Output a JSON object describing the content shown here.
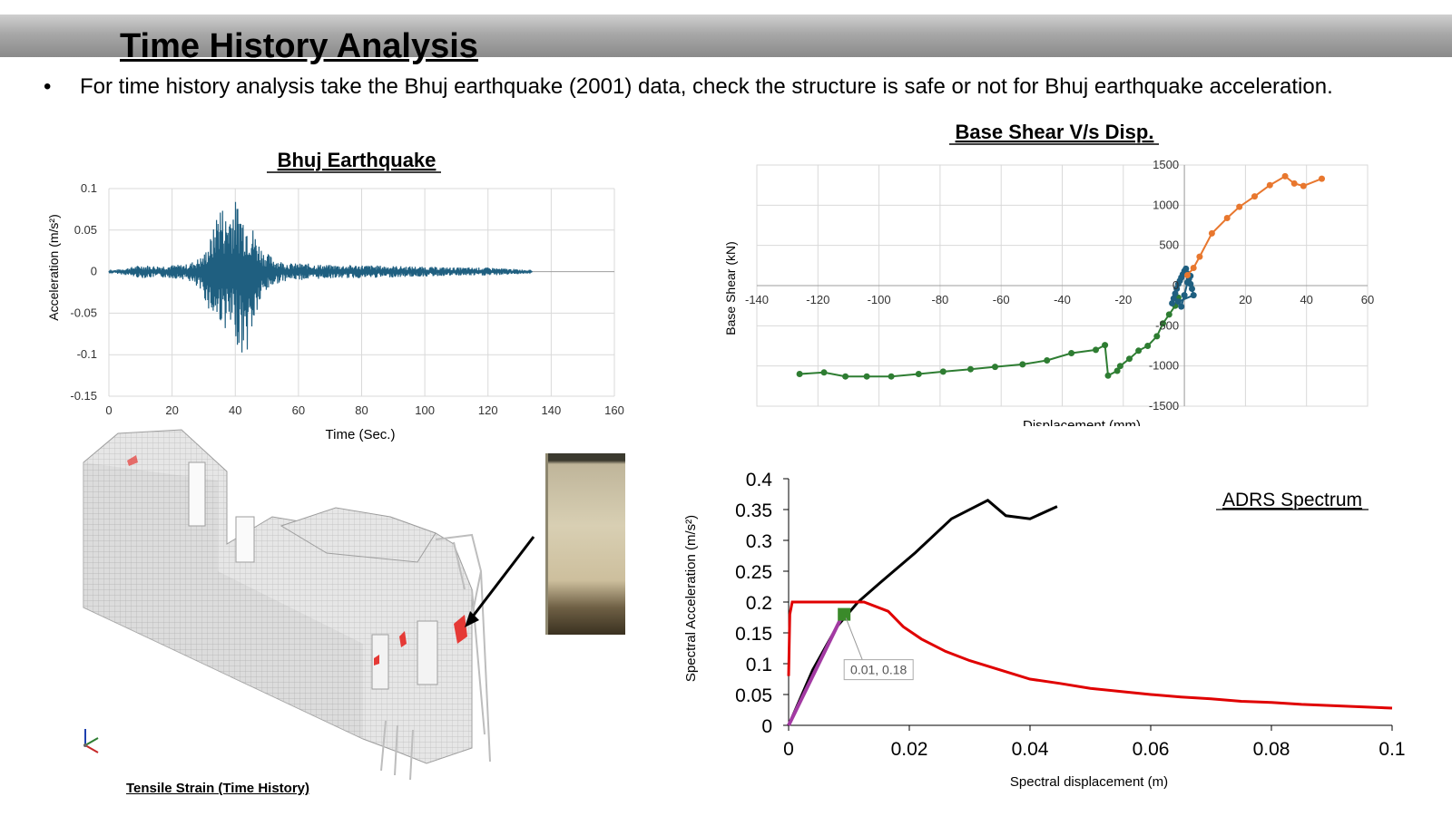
{
  "slide": {
    "title": "Time History Analysis",
    "bullet_symbol": "•",
    "bullet_text": "For time history analysis take the Bhuj earthquake (2001) data, check the structure is safe or not for Bhuj earthquake acceleration.",
    "model_caption": "Tensile Strain (Time History)"
  },
  "colors": {
    "accel_series": "#1f5f80",
    "hysteresis_green": "#2e7d32",
    "hysteresis_blue": "#1f5f80",
    "hysteresis_orange": "#e8772e",
    "capacity_curve": "#000000",
    "demand_spectrum": "#e00000",
    "elastic_line": "#a33aa3",
    "performance_point": "#3a8a2a",
    "strain_highlight": "#e00000"
  },
  "chart_data": [
    {
      "type": "line",
      "title": "Bhuj Earthquake",
      "xlabel": "Time (Sec.)",
      "ylabel": "Acceleration (m/s²)",
      "xlim": [
        0,
        160
      ],
      "ylim": [
        -0.15,
        0.1
      ],
      "x_ticks": [
        "0",
        "20",
        "40",
        "60",
        "80",
        "100",
        "120",
        "140",
        "160"
      ],
      "y_ticks": [
        "0.1",
        "0.05",
        "0",
        "-0.05",
        "-0.1",
        "-0.15"
      ],
      "grid": true,
      "series": [
        {
          "x": [
            0,
            5,
            10,
            15,
            20,
            25,
            30,
            33,
            35,
            37,
            39,
            41,
            43,
            45,
            47,
            49,
            51,
            53,
            55,
            58,
            62,
            70,
            80,
            90,
            100,
            110,
            120,
            134
          ],
          "envelope_max": [
            0.001,
            0.004,
            0.008,
            0.007,
            0.008,
            0.009,
            0.02,
            0.05,
            0.09,
            0.07,
            0.088,
            0.085,
            0.07,
            0.06,
            0.04,
            0.025,
            0.02,
            0.015,
            0.012,
            0.01,
            0.01,
            0.008,
            0.008,
            0.007,
            0.006,
            0.005,
            0.005,
            0.002
          ],
          "envelope_min": [
            -0.001,
            -0.004,
            -0.008,
            -0.007,
            -0.008,
            -0.01,
            -0.03,
            -0.06,
            -0.06,
            -0.07,
            -0.08,
            -0.09,
            -0.11,
            -0.08,
            -0.05,
            -0.03,
            -0.02,
            -0.015,
            -0.012,
            -0.01,
            -0.01,
            -0.008,
            -0.008,
            -0.007,
            -0.006,
            -0.005,
            -0.005,
            -0.002
          ]
        }
      ]
    },
    {
      "type": "scatter",
      "title": "Base Shear V/s Disp.",
      "xlabel": "Displacement (mm)",
      "ylabel": "Base Shear (kN)",
      "xlim": [
        -140,
        60
      ],
      "ylim": [
        -1500,
        1500
      ],
      "x_ticks": [
        "-140",
        "-120",
        "-100",
        "-80",
        "-60",
        "-40",
        "-20",
        "0",
        "20",
        "40",
        "60"
      ],
      "y_ticks": [
        "1500",
        "1000",
        "500",
        "0",
        "-500",
        "-1000",
        "-1500"
      ],
      "grid": true,
      "series": [
        {
          "color_key": "hysteresis_green",
          "x": [
            -126,
            -118,
            -111,
            -104,
            -96,
            -87,
            -79,
            -70,
            -62,
            -53,
            -45,
            -37,
            -29,
            -26,
            -25,
            -22,
            -21,
            -18,
            -15,
            -12,
            -9,
            -7,
            -5,
            -3,
            -2
          ],
          "y": [
            -1100,
            -1080,
            -1130,
            -1130,
            -1130,
            -1100,
            -1070,
            -1040,
            -1010,
            -980,
            -930,
            -840,
            -800,
            -740,
            -1120,
            -1060,
            -1000,
            -910,
            -810,
            -750,
            -630,
            -470,
            -360,
            -250,
            -150
          ]
        },
        {
          "color_key": "hysteresis_blue",
          "x": [
            -4,
            -3.5,
            -3,
            -2.5,
            -2,
            -1.5,
            -1,
            -0.5,
            0,
            0.5,
            1,
            1.5,
            2,
            2.5,
            3,
            -2,
            -1,
            0,
            1,
            2
          ],
          "y": [
            -220,
            -160,
            -100,
            -40,
            20,
            60,
            100,
            140,
            180,
            210,
            150,
            80,
            20,
            -40,
            -120,
            -200,
            -260,
            -120,
            40,
            120
          ]
        },
        {
          "color_key": "hysteresis_orange",
          "x": [
            1,
            3,
            5,
            9,
            14,
            18,
            23,
            28,
            33,
            36,
            39,
            45
          ],
          "y": [
            130,
            220,
            360,
            650,
            840,
            980,
            1110,
            1250,
            1360,
            1270,
            1240,
            1330
          ]
        }
      ]
    },
    {
      "type": "line",
      "title": "ADRS Spectrum",
      "xlabel": "Spectral displacement (m)",
      "ylabel": "Spectral Acceleration (m/s²)",
      "xlim": [
        0,
        0.1
      ],
      "ylim": [
        0,
        0.4
      ],
      "x_ticks": [
        "0",
        "0.02",
        "0.04",
        "0.06",
        "0.08",
        "0.1"
      ],
      "y_ticks": [
        "0.4",
        "0.35",
        "0.3",
        "0.25",
        "0.2",
        "0.15",
        "0.1",
        "0.05",
        "0"
      ],
      "grid": false,
      "annotation": {
        "label": "0.01, 0.18",
        "x": 0.0092,
        "y": 0.18
      },
      "series": [
        {
          "color_key": "capacity_curve",
          "x": [
            0,
            0.004,
            0.008,
            0.0115,
            0.015,
            0.021,
            0.027,
            0.033,
            0.036,
            0.04,
            0.0445
          ],
          "y": [
            0,
            0.09,
            0.16,
            0.2,
            0.23,
            0.28,
            0.335,
            0.365,
            0.34,
            0.335,
            0.355
          ]
        },
        {
          "color_key": "demand_spectrum",
          "x": [
            0,
            0.0002,
            0.0006,
            0.001,
            0.008,
            0.0125,
            0.0165,
            0.019,
            0.022,
            0.026,
            0.03,
            0.035,
            0.04,
            0.045,
            0.05,
            0.055,
            0.06,
            0.065,
            0.07,
            0.075,
            0.08,
            0.085,
            0.09,
            0.095,
            0.1
          ],
          "y": [
            0.08,
            0.18,
            0.2,
            0.2,
            0.2,
            0.2,
            0.185,
            0.16,
            0.14,
            0.12,
            0.105,
            0.09,
            0.075,
            0.068,
            0.06,
            0.055,
            0.05,
            0.046,
            0.043,
            0.039,
            0.037,
            0.034,
            0.032,
            0.03,
            0.028
          ]
        },
        {
          "color_key": "elastic_line",
          "x": [
            0,
            0.009
          ],
          "y": [
            0,
            0.18
          ]
        }
      ]
    }
  ]
}
